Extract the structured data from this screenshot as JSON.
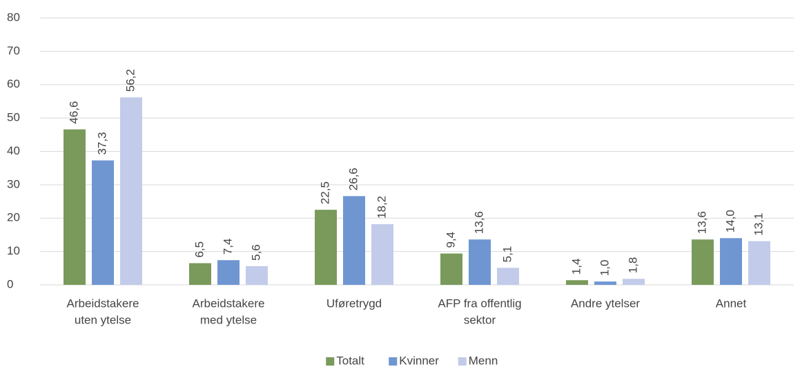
{
  "chart_data": {
    "type": "bar",
    "categories": [
      [
        "Arbeidstakere",
        "uten ytelse"
      ],
      [
        "Arbeidstakere",
        "med ytelse"
      ],
      [
        "Uføretrygd"
      ],
      [
        "AFP fra offentlig",
        "sektor"
      ],
      [
        "Andre ytelser"
      ],
      [
        "Annet"
      ]
    ],
    "series": [
      {
        "name": "Totalt",
        "color": "#7a9a5b",
        "values": [
          46.6,
          6.5,
          22.5,
          9.4,
          1.4,
          13.6
        ],
        "value_labels": [
          "46,6",
          "6,5",
          "22,5",
          "9,4",
          "1,4",
          "13,6"
        ]
      },
      {
        "name": "Kvinner",
        "color": "#6f96d1",
        "values": [
          37.3,
          7.4,
          26.6,
          13.6,
          1.0,
          14.0
        ],
        "value_labels": [
          "37,3",
          "7,4",
          "26,6",
          "13,6",
          "1,0",
          "14,0"
        ]
      },
      {
        "name": "Menn",
        "color": "#c3cbea",
        "values": [
          56.2,
          5.6,
          18.2,
          5.1,
          1.8,
          13.1
        ],
        "value_labels": [
          "56,2",
          "5,6",
          "18,2",
          "5,1",
          "1,8",
          "13,1"
        ]
      }
    ],
    "ylim": [
      0,
      80
    ],
    "yticks": [
      0,
      10,
      20,
      30,
      40,
      50,
      60,
      70,
      80
    ],
    "grid": true,
    "legend": "bottom"
  }
}
